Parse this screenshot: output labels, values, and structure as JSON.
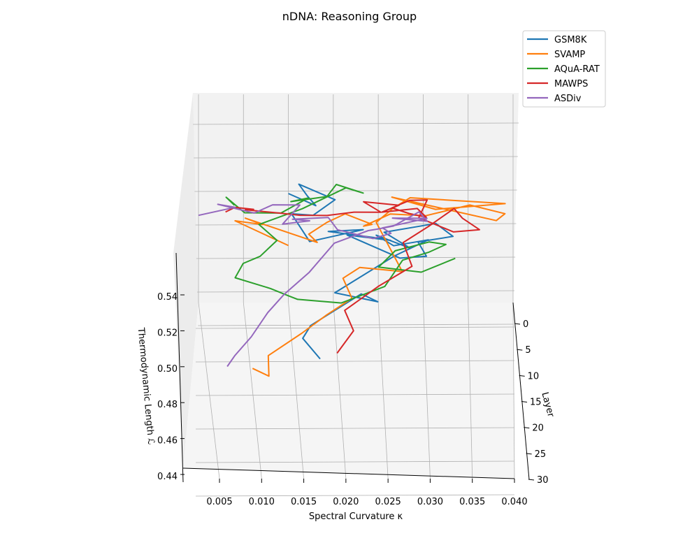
{
  "chart_data": {
    "type": "line",
    "projection": "3d",
    "title": "nDNA: Reasoning Group",
    "xlabel": "Spectral Curvature κ",
    "ylabel": "Layer",
    "zlabel": "Thermodynamic Length ℒ",
    "x_ticks": [
      "0.005",
      "0.010",
      "0.015",
      "0.020",
      "0.025",
      "0.030",
      "0.035",
      "0.040"
    ],
    "y_ticks": [
      "0",
      "5",
      "10",
      "15",
      "20",
      "25",
      "30"
    ],
    "z_ticks": [
      "0.54",
      "0.52",
      "0.50",
      "0.48",
      "0.46",
      "0.44"
    ],
    "xlim": [
      0.0,
      0.042
    ],
    "ylim": [
      0,
      30
    ],
    "zlim": [
      0.44,
      0.55
    ],
    "grid": true,
    "legend_position": "top-right",
    "series": [
      {
        "name": "GSM8K",
        "color": "#1f77b4",
        "layers": [
          0,
          1,
          2,
          3,
          4,
          5,
          6,
          7,
          8,
          9,
          10,
          11,
          12,
          13,
          14,
          15,
          16,
          17,
          18,
          19,
          20,
          21,
          22,
          23,
          24,
          25,
          26,
          27,
          28,
          29
        ],
        "x": [
          0.015,
          0.018,
          0.017,
          0.016,
          0.02,
          0.0175,
          0.015,
          0.017,
          0.023,
          0.019,
          0.025,
          0.026,
          0.021,
          0.027,
          0.03,
          0.029,
          0.033,
          0.031,
          0.025,
          0.028,
          0.024,
          0.026,
          0.03,
          0.026,
          0.019,
          0.024,
          0.022,
          0.016,
          0.015,
          0.017
        ],
        "z": [
          0.505,
          0.501,
          0.51,
          0.52,
          0.514,
          0.508,
          0.512,
          0.499,
          0.509,
          0.511,
          0.51,
          0.512,
          0.518,
          0.508,
          0.512,
          0.523,
          0.529,
          0.539,
          0.537,
          0.531,
          0.541,
          0.538,
          0.544,
          0.538,
          0.521,
          0.519,
          0.526,
          0.512,
          0.508,
          0.5
        ]
      },
      {
        "name": "SVAMP",
        "color": "#ff7f0e",
        "layers": [
          0,
          1,
          2,
          3,
          4,
          5,
          6,
          7,
          8,
          9,
          10,
          11,
          12,
          13,
          14,
          15,
          16,
          17,
          18,
          19,
          20,
          21,
          22,
          23,
          24,
          25,
          26,
          27,
          28,
          29
        ],
        "x": [
          0.015,
          0.009,
          0.012,
          0.01,
          0.018,
          0.017,
          0.019,
          0.021,
          0.024,
          0.023,
          0.026,
          0.03,
          0.035,
          0.039,
          0.038,
          0.026,
          0.031,
          0.039,
          0.028,
          0.026,
          0.024,
          0.027,
          0.022,
          0.02,
          0.021,
          0.018,
          0.015,
          0.011,
          0.011,
          0.009
        ],
        "z": [
          0.474,
          0.492,
          0.493,
          0.5,
          0.489,
          0.497,
          0.507,
          0.515,
          0.512,
          0.514,
          0.524,
          0.526,
          0.535,
          0.533,
          0.532,
          0.548,
          0.544,
          0.55,
          0.556,
          0.553,
          0.548,
          0.524,
          0.529,
          0.526,
          0.518,
          0.512,
          0.505,
          0.496,
          0.488,
          0.495
        ]
      },
      {
        "name": "AQuA-RAT",
        "color": "#2ca02c",
        "layers": [
          0,
          1,
          2,
          3,
          4,
          5,
          6,
          7,
          8,
          9,
          10,
          11,
          12,
          13,
          14,
          15,
          16,
          17,
          18,
          19,
          20,
          21,
          22,
          23,
          24,
          25,
          26,
          27,
          28,
          29
        ],
        "x": [
          0.009,
          0.008,
          0.01,
          0.014,
          0.017,
          0.015,
          0.019,
          0.02,
          0.023,
          0.021,
          0.016,
          0.011,
          0.013,
          0.011,
          0.009,
          0.008,
          0.012,
          0.014,
          0.015,
          0.02,
          0.025,
          0.026,
          0.027,
          0.03,
          0.032,
          0.03,
          0.026,
          0.024,
          0.029,
          0.033
        ],
        "z": [
          0.498,
          0.506,
          0.5,
          0.503,
          0.515,
          0.516,
          0.522,
          0.532,
          0.53,
          0.536,
          0.527,
          0.521,
          0.515,
          0.509,
          0.508,
          0.503,
          0.5,
          0.499,
          0.5,
          0.501,
          0.513,
          0.523,
          0.533,
          0.54,
          0.547,
          0.551,
          0.549,
          0.543,
          0.543,
          0.553
        ]
      },
      {
        "name": "MAWPS",
        "color": "#d62728",
        "layers": [
          0,
          1,
          2,
          3,
          4,
          5,
          6,
          7,
          8,
          9,
          10,
          11,
          12,
          13,
          14,
          15,
          16,
          17,
          18,
          19,
          20,
          21,
          22,
          23,
          24,
          25,
          26,
          27,
          28,
          29
        ],
        "x": [
          0.008,
          0.009,
          0.011,
          0.01,
          0.014,
          0.016,
          0.019,
          0.022,
          0.025,
          0.023,
          0.027,
          0.025,
          0.029,
          0.03,
          0.028,
          0.026,
          0.028,
          0.03,
          0.029,
          0.033,
          0.036,
          0.034,
          0.033,
          0.03,
          0.027,
          0.028,
          0.024,
          0.02,
          0.021,
          0.019
        ],
        "z": [
          0.494,
          0.5,
          0.502,
          0.505,
          0.506,
          0.508,
          0.511,
          0.516,
          0.519,
          0.528,
          0.529,
          0.528,
          0.533,
          0.531,
          0.536,
          0.542,
          0.549,
          0.552,
          0.545,
          0.54,
          0.544,
          0.553,
          0.561,
          0.554,
          0.548,
          0.538,
          0.53,
          0.52,
          0.512,
          0.503
        ]
      },
      {
        "name": "ASDiv",
        "color": "#9467bd",
        "layers": [
          0,
          1,
          2,
          3,
          4,
          5,
          6,
          7,
          8,
          9,
          10,
          11,
          12,
          13,
          14,
          15,
          16,
          17,
          18,
          19,
          20,
          21,
          22,
          23,
          24,
          25,
          26,
          27,
          28,
          29
        ],
        "x": [
          0.005,
          0.009,
          0.007,
          0.011,
          0.013,
          0.016,
          0.014,
          0.017,
          0.015,
          0.019,
          0.02,
          0.024,
          0.026,
          0.025,
          0.027,
          0.028,
          0.03,
          0.026,
          0.03,
          0.029,
          0.026,
          0.024,
          0.023,
          0.019,
          0.016,
          0.013,
          0.011,
          0.009,
          0.007,
          0.006
        ],
        "z": [
          0.492,
          0.5,
          0.505,
          0.503,
          0.511,
          0.514,
          0.506,
          0.511,
          0.515,
          0.519,
          0.515,
          0.513,
          0.519,
          0.525,
          0.53,
          0.534,
          0.539,
          0.542,
          0.543,
          0.551,
          0.546,
          0.547,
          0.549,
          0.545,
          0.532,
          0.523,
          0.516,
          0.506,
          0.499,
          0.496
        ]
      }
    ]
  }
}
